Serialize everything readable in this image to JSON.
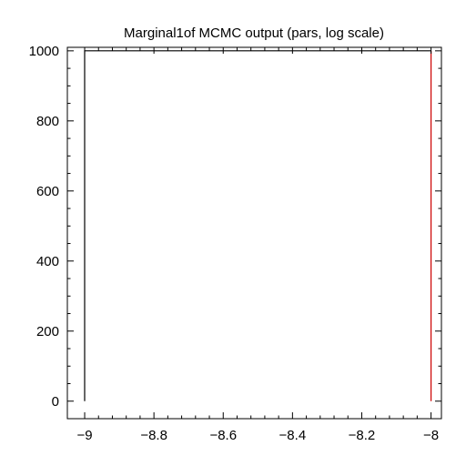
{
  "chart_data": {
    "type": "line",
    "title": "Marginal1of MCMC output (pars, log scale)",
    "xlabel": "",
    "ylabel": "",
    "xlim": [
      -9.05,
      -7.97
    ],
    "ylim": [
      -50,
      1010
    ],
    "x_ticks": [
      -9,
      -8.8,
      -8.6,
      -8.4,
      -8.2,
      -8
    ],
    "x_tick_labels": [
      "−9",
      "−8.8",
      "−8.6",
      "−8.4",
      "−8.2",
      "−8"
    ],
    "y_ticks": [
      0,
      200,
      400,
      600,
      800,
      1000
    ],
    "y_tick_labels": [
      "0",
      "200",
      "400",
      "600",
      "800",
      "1000"
    ],
    "grid": false,
    "legend": "none",
    "series": [
      {
        "color": "#000000",
        "x": [
          -9,
          -9,
          -8
        ],
        "y": [
          0,
          1000,
          1000
        ]
      },
      {
        "color": "#cc0000",
        "x": [
          -8,
          -8
        ],
        "y": [
          1000,
          0
        ]
      }
    ]
  }
}
